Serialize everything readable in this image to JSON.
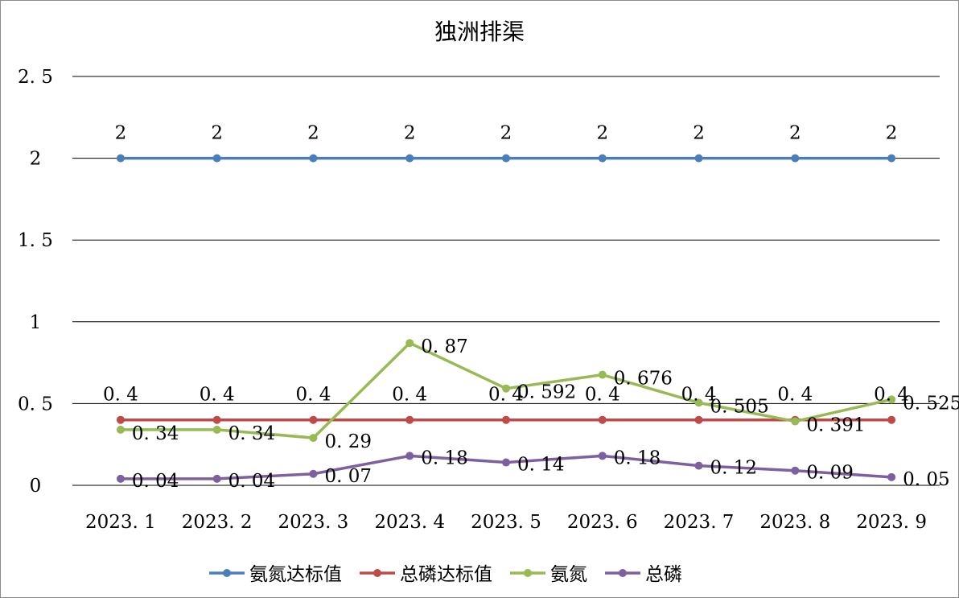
{
  "chart_data": {
    "type": "line",
    "title": "独洲排渠",
    "xlabel": "",
    "ylabel": "",
    "categories": [
      "2023.1",
      "2023.2",
      "2023.3",
      "2023.4",
      "2023.5",
      "2023.6",
      "2023.7",
      "2023.8",
      "2023.9"
    ],
    "ylim": [
      0,
      2.5
    ],
    "yticks": [
      "0",
      "0.5",
      "1",
      "1.5",
      "2",
      "2.5"
    ],
    "grid": true,
    "legend_position": "bottom",
    "series": [
      {
        "name": "氨氮达标值",
        "color": "#4a7ebb",
        "values": [
          2,
          2,
          2,
          2,
          2,
          2,
          2,
          2,
          2
        ],
        "labels": [
          "2",
          "2",
          "2",
          "2",
          "2",
          "2",
          "2",
          "2",
          "2"
        ]
      },
      {
        "name": "总磷达标值",
        "color": "#be4b48",
        "values": [
          0.4,
          0.4,
          0.4,
          0.4,
          0.4,
          0.4,
          0.4,
          0.4,
          0.4
        ],
        "labels": [
          "0.4",
          "0.4",
          "0.4",
          "0.4",
          "0.4",
          "0.4",
          "0.4",
          "0.4",
          "0.4"
        ]
      },
      {
        "name": "氨氮",
        "color": "#98b954",
        "values": [
          0.34,
          0.34,
          0.29,
          0.87,
          0.592,
          0.676,
          0.505,
          0.391,
          0.525
        ],
        "labels": [
          "0.34",
          "0.34",
          "0.29",
          "0.87",
          "0.592",
          "0.676",
          "0.505",
          "0.391",
          "0.525"
        ]
      },
      {
        "name": "总磷",
        "color": "#7d60a0",
        "values": [
          0.04,
          0.04,
          0.07,
          0.18,
          0.14,
          0.18,
          0.12,
          0.09,
          0.05
        ],
        "labels": [
          "0.04",
          "0.04",
          "0.07",
          "0.18",
          "0.14",
          "0.18",
          "0.12",
          "0.09",
          "0.05"
        ]
      }
    ]
  }
}
